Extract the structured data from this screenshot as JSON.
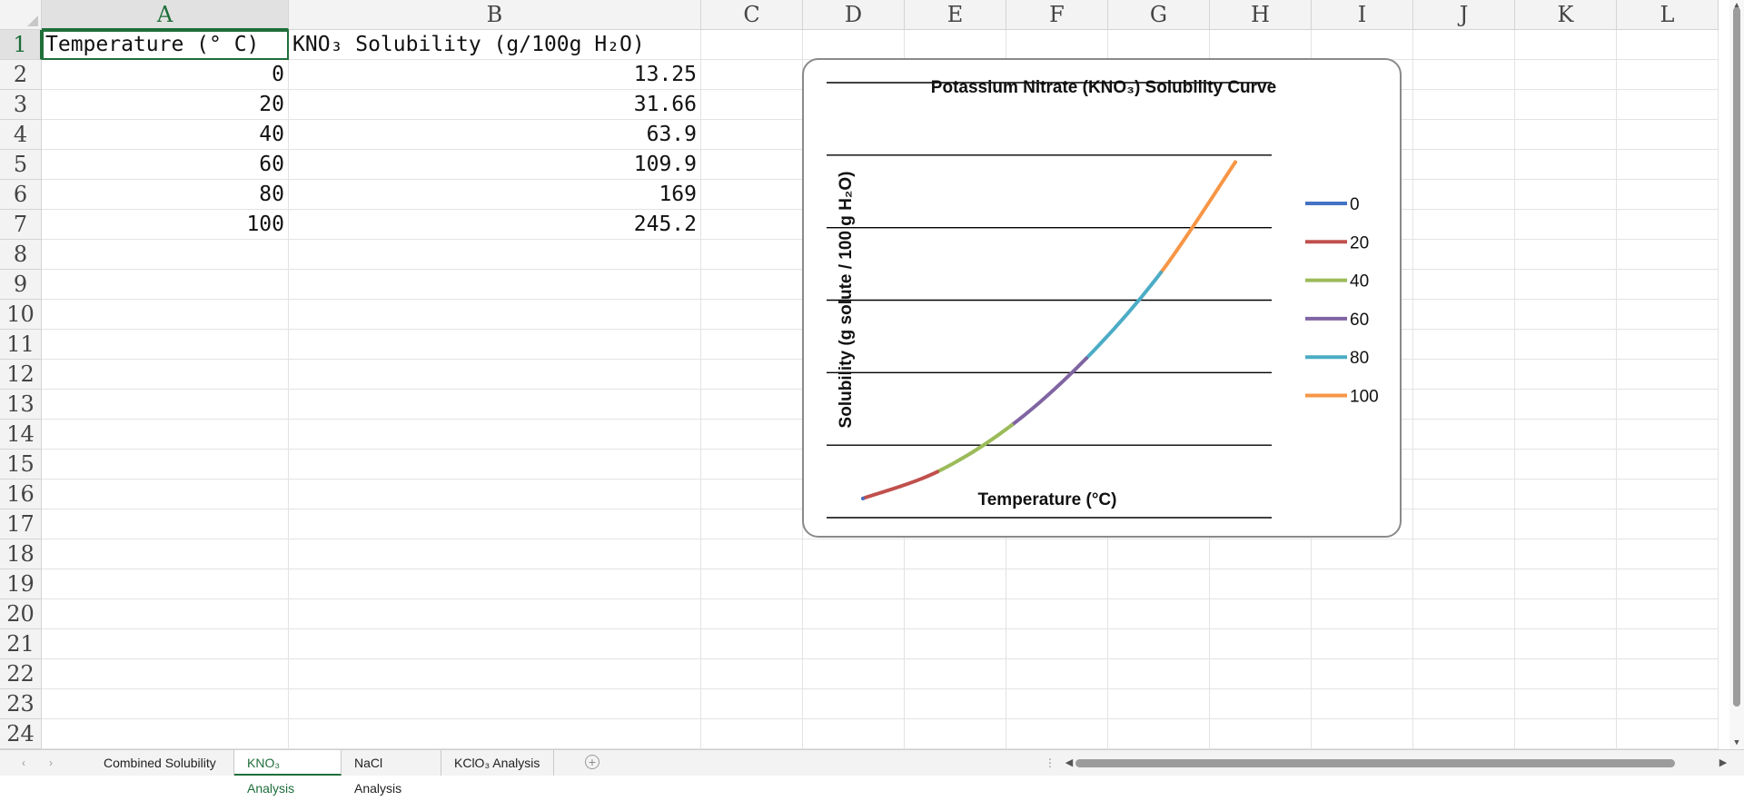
{
  "columns": [
    "A",
    "B",
    "C",
    "D",
    "E",
    "F",
    "G",
    "H",
    "I",
    "J",
    "K",
    "L"
  ],
  "rows": [
    "1",
    "2",
    "3",
    "4",
    "5",
    "6",
    "7",
    "8",
    "9",
    "10",
    "11",
    "12",
    "13",
    "14",
    "15",
    "16",
    "17",
    "18",
    "19",
    "20",
    "21",
    "22",
    "23",
    "24"
  ],
  "cells": {
    "A1": "Temperature (° C)",
    "B1": "KNO₃ Solubility (g/100g H₂O)",
    "A2": "0",
    "B2": "13.25",
    "A3": "20",
    "B3": "31.66",
    "A4": "40",
    "B4": "63.9",
    "A5": "60",
    "B5": "109.9",
    "A6": "80",
    "B6": "169",
    "A7": "100",
    "B7": "245.2"
  },
  "active_cell": "A1",
  "chart_data": {
    "type": "line",
    "title": "Potassium Nitrate (KNO₃) Solubility Curve",
    "xlabel": "Temperature (°C)",
    "ylabel": "Solubility (g solute / 100 g H₂O)",
    "x": [
      0,
      20,
      40,
      60,
      80,
      100
    ],
    "y": [
      13.25,
      31.66,
      63.9,
      109.9,
      169,
      245.2
    ],
    "ylim": [
      0,
      300
    ],
    "grid": true,
    "axis_tick_labels_visible": false,
    "legend_position": "right",
    "series": [
      {
        "name": "0",
        "color": "#4472c4"
      },
      {
        "name": "20",
        "color": "#c0504d"
      },
      {
        "name": "40",
        "color": "#9bbb59"
      },
      {
        "name": "60",
        "color": "#8064a2"
      },
      {
        "name": "80",
        "color": "#4bacc6"
      },
      {
        "name": "100",
        "color": "#f79646"
      }
    ]
  },
  "sheet_tabs": [
    "Combined Solubility",
    "KNO₃ Analysis",
    "NaCl Analysis",
    "KClO₃ Analysis"
  ],
  "active_tab": "KNO₃ Analysis",
  "icons": {
    "nav_prev": "chevron-left-icon",
    "nav_next": "chevron-right-icon",
    "add_sheet": "plus-circle-icon",
    "scroll_left": "triangle-left-icon",
    "scroll_right": "triangle-right-icon",
    "scroll_up": "triangle-up-icon",
    "scroll_down": "triangle-down-icon"
  }
}
